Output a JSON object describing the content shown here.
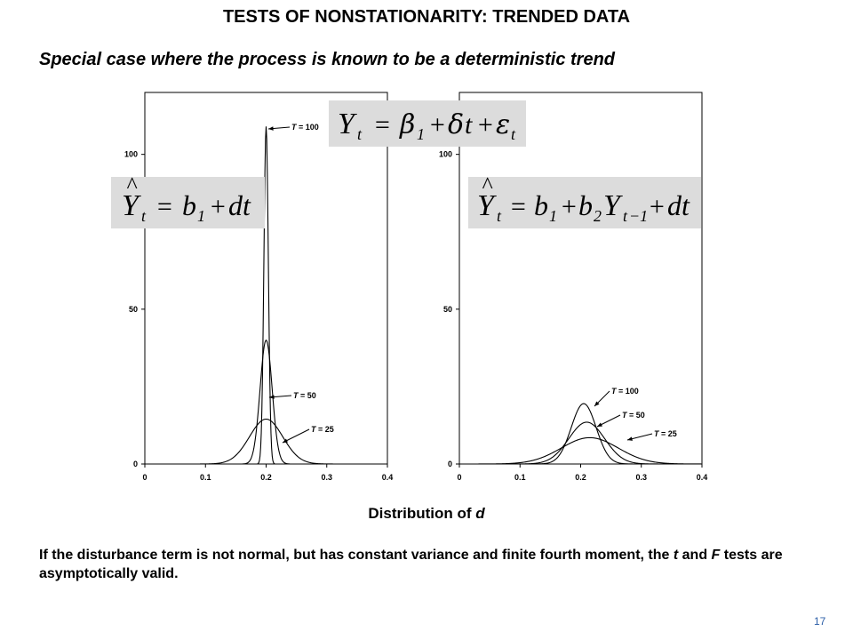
{
  "slide": {
    "title": "TESTS OF NONSTATIONARITY: TRENDED DATA",
    "subtitle": "Special case where the process is known to be a deterministic trend",
    "xlabel_prefix": "Distribution of ",
    "xlabel_var": "d",
    "note_parts": [
      "If the disturbance term is not normal, but has constant variance and finite fourth moment, the ",
      "t",
      " and ",
      "F",
      " tests are asymptotically valid."
    ],
    "slide_number": "17"
  },
  "equations": {
    "true_model": "Y_t = β_1 + δt + ε_t",
    "fit_left": "Ŷ_t = b_1 + dt",
    "fit_right": "Ŷ_t = b_1 + b_2 Y_{t−1} + dt"
  },
  "chart_data": [
    {
      "type": "line",
      "xlim": [
        0,
        0.4
      ],
      "ylim": [
        0,
        120
      ],
      "x_ticks": [
        "0",
        "0.1",
        "0.2",
        "0.3",
        "0.4"
      ],
      "y_ticks": [
        "0",
        "50",
        "100"
      ],
      "series": [
        {
          "name": "T = 100",
          "peak_x": 0.2,
          "peak_y": 109,
          "sd": 0.00366
        },
        {
          "name": "T = 50",
          "peak_x": 0.2,
          "peak_y": 40,
          "sd": 0.00997
        },
        {
          "name": "T = 25",
          "peak_x": 0.2,
          "peak_y": 14.5,
          "sd": 0.0275
        }
      ]
    },
    {
      "type": "line",
      "xlim": [
        0,
        0.4
      ],
      "ylim": [
        0,
        120
      ],
      "x_ticks": [
        "0",
        "0.1",
        "0.2",
        "0.3",
        "0.4"
      ],
      "y_ticks": [
        "0",
        "50",
        "100"
      ],
      "series": [
        {
          "name": "T = 100",
          "peak_x": 0.205,
          "peak_y": 19.5,
          "sd": 0.0205
        },
        {
          "name": "T = 50",
          "peak_x": 0.21,
          "peak_y": 13.5,
          "sd": 0.0296
        },
        {
          "name": "T = 25",
          "peak_x": 0.215,
          "peak_y": 8.5,
          "sd": 0.047
        }
      ]
    }
  ]
}
